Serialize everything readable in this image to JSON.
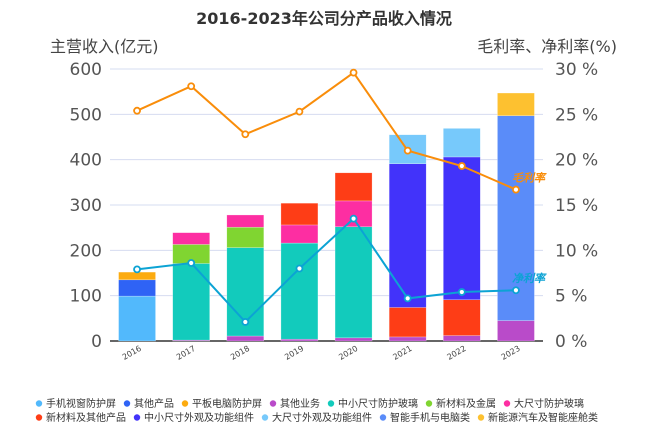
{
  "chart_data": {
    "type": "bar",
    "stacked": true,
    "title": "2016-2023年公司分产品收入情况",
    "ylabel_left": "主营收入(亿元)",
    "ylabel_right": "毛利率、净利率(%)",
    "ylim_left": [
      0,
      600
    ],
    "ylim_right": [
      0,
      30
    ],
    "yticks_left": [
      "0",
      "100",
      "200",
      "300",
      "400",
      "500",
      "600"
    ],
    "yticks_right": [
      "0 %",
      "5 %",
      "10 %",
      "15 %",
      "20 %",
      "25 %",
      "30 %"
    ],
    "grid": true,
    "legend_position": "bottom",
    "categories": [
      "2016",
      "2017",
      "2018",
      "2019",
      "2020",
      "2021",
      "2022",
      "2023"
    ],
    "series": [
      {
        "name": "手机视窗防护屏",
        "color": "#52b9fc",
        "values": [
          99,
          0,
          0,
          0,
          0,
          0,
          0,
          0
        ]
      },
      {
        "name": "其他产品",
        "color": "#2f63f5",
        "values": [
          36,
          0,
          0,
          0,
          0,
          0,
          0,
          0
        ]
      },
      {
        "name": "平板电脑防护屏",
        "color": "#fcab10",
        "values": [
          17,
          0,
          0,
          0,
          0,
          0,
          0,
          0
        ]
      },
      {
        "name": "其他业务",
        "color": "#b94bc9",
        "values": [
          0,
          2,
          11,
          4,
          7,
          9,
          12,
          45
        ]
      },
      {
        "name": "中小尺寸防护玻璃",
        "color": "#12cbbc",
        "values": [
          0,
          169,
          195,
          212,
          245,
          0,
          0,
          0
        ]
      },
      {
        "name": "新材料及金属",
        "color": "#80d531",
        "values": [
          0,
          42,
          45,
          0,
          0,
          0,
          0,
          0
        ]
      },
      {
        "name": "大尺寸防护玻璃",
        "color": "#fd2ea2",
        "values": [
          0,
          26,
          27,
          40,
          57,
          0,
          0,
          0
        ]
      },
      {
        "name": "新材料及其他产品",
        "color": "#fe3d16",
        "values": [
          0,
          0,
          0,
          48,
          62,
          65,
          79,
          0
        ]
      },
      {
        "name": "中小尺寸外观及功能组件",
        "color": "#4233fa",
        "values": [
          0,
          0,
          0,
          0,
          0,
          317,
          315,
          0
        ]
      },
      {
        "name": "大尺寸外观及功能组件",
        "color": "#77c9fb",
        "values": [
          0,
          0,
          0,
          0,
          0,
          64,
          63,
          0
        ]
      },
      {
        "name": "智能手机与电脑类",
        "color": "#5a8cf9",
        "values": [
          0,
          0,
          0,
          0,
          0,
          0,
          0,
          452
        ]
      },
      {
        "name": "新能源汽车及智能座舱类",
        "color": "#fdc130",
        "values": [
          0,
          0,
          0,
          0,
          0,
          0,
          0,
          50
        ]
      }
    ],
    "lines": [
      {
        "name": "毛利率",
        "color": "#f98d0a",
        "axis": "right",
        "values": [
          25.4,
          28.1,
          22.8,
          25.3,
          29.6,
          21.0,
          19.3,
          16.7
        ]
      },
      {
        "name": "净利率",
        "color": "#0ca3d4",
        "axis": "right",
        "values": [
          7.9,
          8.6,
          2.1,
          8.0,
          13.5,
          4.7,
          5.4,
          5.6
        ]
      }
    ]
  }
}
